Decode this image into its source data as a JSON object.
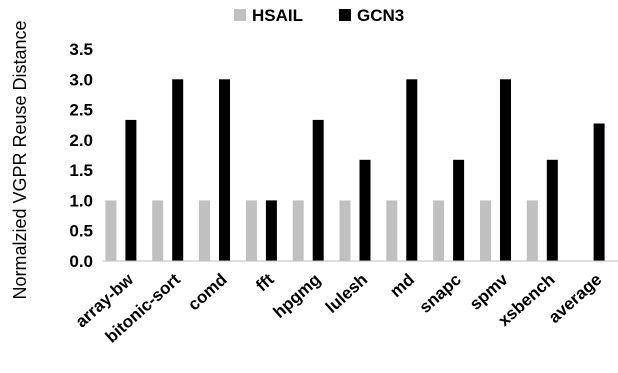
{
  "chart_data": {
    "type": "bar",
    "title": "",
    "xlabel": "",
    "ylabel": "Normalzied VGPR Reuse Distance",
    "ylim": [
      0,
      3.5
    ],
    "yticks": [
      "0.0",
      "0.5",
      "1.0",
      "1.5",
      "2.0",
      "2.5",
      "3.0",
      "3.5"
    ],
    "grid": false,
    "legend_position": "top-center",
    "categories": [
      "array-bw",
      "bitonic-sort",
      "comd",
      "fft",
      "hpgmg",
      "lulesh",
      "md",
      "snapc",
      "spmv",
      "xsbench",
      "average"
    ],
    "series": [
      {
        "name": "HSAIL",
        "color": "#c0c0c0",
        "values": [
          1.0,
          1.0,
          1.0,
          1.0,
          1.0,
          1.0,
          1.0,
          1.0,
          1.0,
          1.0,
          null
        ]
      },
      {
        "name": "GCN3",
        "color": "#000000",
        "values": [
          2.33,
          3.0,
          3.0,
          1.0,
          2.33,
          1.67,
          3.0,
          1.67,
          3.0,
          1.67,
          2.27
        ]
      }
    ]
  }
}
